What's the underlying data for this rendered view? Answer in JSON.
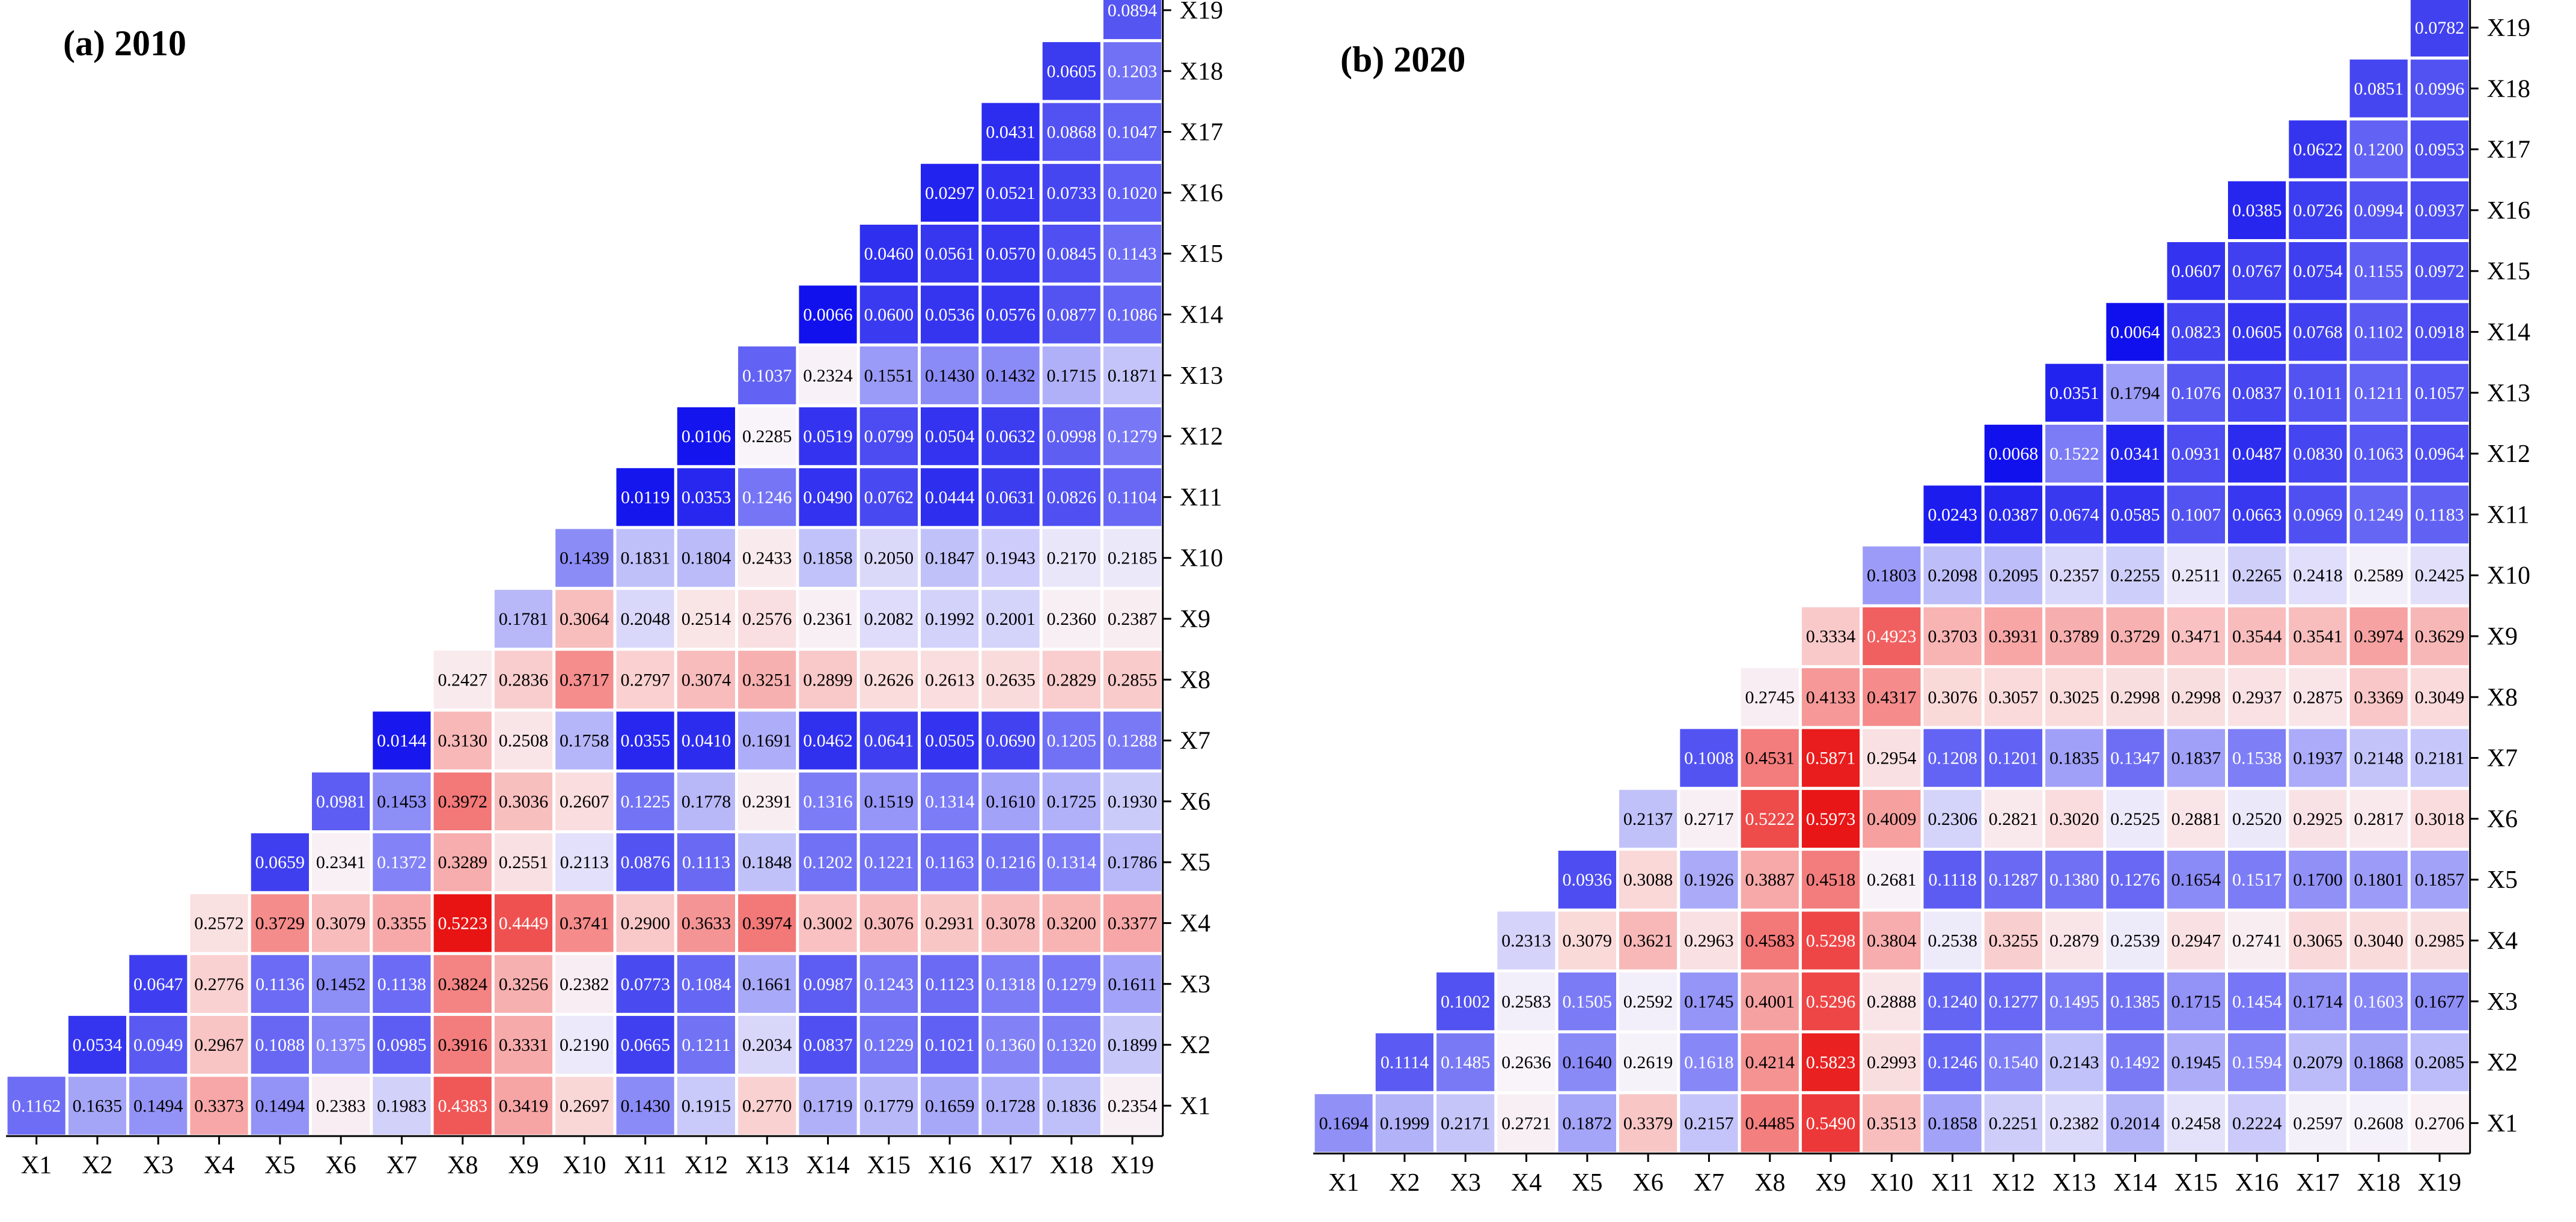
{
  "chart_data": [
    {
      "type": "heatmap",
      "title": "(a) 2010",
      "x_labels": [
        "X1",
        "X2",
        "X3",
        "X4",
        "X5",
        "X6",
        "X7",
        "X8",
        "X9",
        "X10",
        "X11",
        "X12",
        "X13",
        "X14",
        "X15",
        "X16",
        "X17",
        "X18",
        "X19"
      ],
      "y_labels": [
        "X1",
        "X2",
        "X3",
        "X4",
        "X5",
        "X6",
        "X7",
        "X8",
        "X9",
        "X10",
        "X11",
        "X12",
        "X13",
        "X14",
        "X15",
        "X16",
        "X17",
        "X18",
        "X19"
      ],
      "value_strings": [
        [
          "0.1162",
          "0.1635",
          "0.1494",
          "0.3373",
          "0.1494",
          "0.2383",
          "0.1983",
          "0.4383",
          "0.3419",
          "0.2697",
          "0.1430",
          "0.1915",
          "0.2770",
          "0.1719",
          "0.1779",
          "0.1659",
          "0.1728",
          "0.1836",
          "0.2354"
        ],
        [
          "0.0534",
          "0.0949",
          "0.2967",
          "0.1088",
          "0.1375",
          "0.0985",
          "0.3916",
          "0.3331",
          "0.2190",
          "0.0665",
          "0.1211",
          "0.2034",
          "0.0837",
          "0.1229",
          "0.1021",
          "0.1360",
          "0.1320",
          "0.1899"
        ],
        [
          "0.0647",
          "0.2776",
          "0.1136",
          "0.1452",
          "0.1138",
          "0.3824",
          "0.3256",
          "0.2382",
          "0.0773",
          "0.1084",
          "0.1661",
          "0.0987",
          "0.1243",
          "0.1123",
          "0.1318",
          "0.1279",
          "0.1611"
        ],
        [
          "0.2572",
          "0.3729",
          "0.3079",
          "0.3355",
          "0.5223",
          "0.4449",
          "0.3741",
          "0.2900",
          "0.3633",
          "0.3974",
          "0.3002",
          "0.3076",
          "0.2931",
          "0.3078",
          "0.3200",
          "0.3377"
        ],
        [
          "0.0659",
          "0.2341",
          "0.1372",
          "0.3289",
          "0.2551",
          "0.2113",
          "0.0876",
          "0.1113",
          "0.1848",
          "0.1202",
          "0.1221",
          "0.1163",
          "0.1216",
          "0.1314",
          "0.1786"
        ],
        [
          "0.0981",
          "0.1453",
          "0.3972",
          "0.3036",
          "0.2607",
          "0.1225",
          "0.1778",
          "0.2391",
          "0.1316",
          "0.1519",
          "0.1314",
          "0.1610",
          "0.1725",
          "0.1930"
        ],
        [
          "0.0144",
          "0.3130",
          "0.2508",
          "0.1758",
          "0.0355",
          "0.0410",
          "0.1691",
          "0.0462",
          "0.0641",
          "0.0505",
          "0.0690",
          "0.1205",
          "0.1288"
        ],
        [
          "0.2427",
          "0.2836",
          "0.3717",
          "0.2797",
          "0.3074",
          "0.3251",
          "0.2899",
          "0.2626",
          "0.2613",
          "0.2635",
          "0.2829",
          "0.2855"
        ],
        [
          "0.1781",
          "0.3064",
          "0.2048",
          "0.2514",
          "0.2576",
          "0.2361",
          "0.2082",
          "0.1992",
          "0.2001",
          "0.2360",
          "0.2387"
        ],
        [
          "0.1439",
          "0.1831",
          "0.1804",
          "0.2433",
          "0.1858",
          "0.2050",
          "0.1847",
          "0.1943",
          "0.2170",
          "0.2185"
        ],
        [
          "0.0119",
          "0.0353",
          "0.1246",
          "0.0490",
          "0.0762",
          "0.0444",
          "0.0631",
          "0.0826",
          "0.1104"
        ],
        [
          "0.0106",
          "0.2285",
          "0.0519",
          "0.0799",
          "0.0504",
          "0.0632",
          "0.0998",
          "0.1279"
        ],
        [
          "0.1037",
          "0.2324",
          "0.1551",
          "0.1430",
          "0.1432",
          "0.1715",
          "0.1871"
        ],
        [
          "0.0066",
          "0.0600",
          "0.0536",
          "0.0576",
          "0.0877",
          "0.1086"
        ],
        [
          "0.0460",
          "0.0561",
          "0.0570",
          "0.0845",
          "0.1143"
        ],
        [
          "0.0297",
          "0.0521",
          "0.0733",
          "0.1020"
        ],
        [
          "0.0431",
          "0.0868",
          "0.1047"
        ],
        [
          "0.0605",
          "0.1203"
        ],
        [
          "0.0894"
        ]
      ]
    },
    {
      "type": "heatmap",
      "title": "(b) 2020",
      "x_labels": [
        "X1",
        "X2",
        "X3",
        "X4",
        "X5",
        "X6",
        "X7",
        "X8",
        "X9",
        "X10",
        "X11",
        "X12",
        "X13",
        "X14",
        "X15",
        "X16",
        "X17",
        "X18",
        "X19"
      ],
      "y_labels": [
        "X1",
        "X2",
        "X3",
        "X4",
        "X5",
        "X6",
        "X7",
        "X8",
        "X9",
        "X10",
        "X11",
        "X12",
        "X13",
        "X14",
        "X15",
        "X16",
        "X17",
        "X18",
        "X19"
      ],
      "value_strings": [
        [
          "0.1694",
          "0.1999",
          "0.2171",
          "0.2721",
          "0.1872",
          "0.3379",
          "0.2157",
          "0.4485",
          "0.5490",
          "0.3513",
          "0.1858",
          "0.2251",
          "0.2382",
          "0.2014",
          "0.2458",
          "0.2224",
          "0.2597",
          "0.2608",
          "0.2706"
        ],
        [
          "0.1114",
          "0.1485",
          "0.2636",
          "0.1640",
          "0.2619",
          "0.1618",
          "0.4214",
          "0.5823",
          "0.2993",
          "0.1246",
          "0.1540",
          "0.2143",
          "0.1492",
          "0.1945",
          "0.1594",
          "0.2079",
          "0.1868",
          "0.2085"
        ],
        [
          "0.1002",
          "0.2583",
          "0.1505",
          "0.2592",
          "0.1745",
          "0.4001",
          "0.5296",
          "0.2888",
          "0.1240",
          "0.1277",
          "0.1495",
          "0.1385",
          "0.1715",
          "0.1454",
          "0.1714",
          "0.1603",
          "0.1677"
        ],
        [
          "0.2313",
          "0.3079",
          "0.3621",
          "0.2963",
          "0.4583",
          "0.5298",
          "0.3804",
          "0.2538",
          "0.3255",
          "0.2879",
          "0.2539",
          "0.2947",
          "0.2741",
          "0.3065",
          "0.3040",
          "0.2985"
        ],
        [
          "0.0936",
          "0.3088",
          "0.1926",
          "0.3887",
          "0.4518",
          "0.2681",
          "0.1118",
          "0.1287",
          "0.1380",
          "0.1276",
          "0.1654",
          "0.1517",
          "0.1700",
          "0.1801",
          "0.1857"
        ],
        [
          "0.2137",
          "0.2717",
          "0.5222",
          "0.5973",
          "0.4009",
          "0.2306",
          "0.2821",
          "0.3020",
          "0.2525",
          "0.2881",
          "0.2520",
          "0.2925",
          "0.2817",
          "0.3018"
        ],
        [
          "0.1008",
          "0.4531",
          "0.5871",
          "0.2954",
          "0.1208",
          "0.1201",
          "0.1835",
          "0.1347",
          "0.1837",
          "0.1538",
          "0.1937",
          "0.2148",
          "0.2181"
        ],
        [
          "0.2745",
          "0.4133",
          "0.4317",
          "0.3076",
          "0.3057",
          "0.3025",
          "0.2998",
          "0.2998",
          "0.2937",
          "0.2875",
          "0.3369",
          "0.3049"
        ],
        [
          "0.3334",
          "0.4923",
          "0.3703",
          "0.3931",
          "0.3789",
          "0.3729",
          "0.3471",
          "0.3544",
          "0.3541",
          "0.3974",
          "0.3629"
        ],
        [
          "0.1803",
          "0.2098",
          "0.2095",
          "0.2357",
          "0.2255",
          "0.2511",
          "0.2265",
          "0.2418",
          "0.2589",
          "0.2425"
        ],
        [
          "0.0243",
          "0.0387",
          "0.0674",
          "0.0585",
          "0.1007",
          "0.0663",
          "0.0969",
          "0.1249",
          "0.1183"
        ],
        [
          "0.0068",
          "0.1522",
          "0.0341",
          "0.0931",
          "0.0487",
          "0.0830",
          "0.1063",
          "0.0964"
        ],
        [
          "0.0351",
          "0.1794",
          "0.1076",
          "0.0837",
          "0.1011",
          "0.1211",
          "0.1057"
        ],
        [
          "0.0064",
          "0.0823",
          "0.0605",
          "0.0768",
          "0.1102",
          "0.0918"
        ],
        [
          "0.0607",
          "0.0767",
          "0.0754",
          "0.1155",
          "0.0972"
        ],
        [
          "0.0385",
          "0.0726",
          "0.0994",
          "0.0937"
        ],
        [
          "0.0622",
          "0.1200",
          "0.0953"
        ],
        [
          "0.0851",
          "0.0996"
        ],
        [
          "0.0782"
        ]
      ]
    }
  ]
}
